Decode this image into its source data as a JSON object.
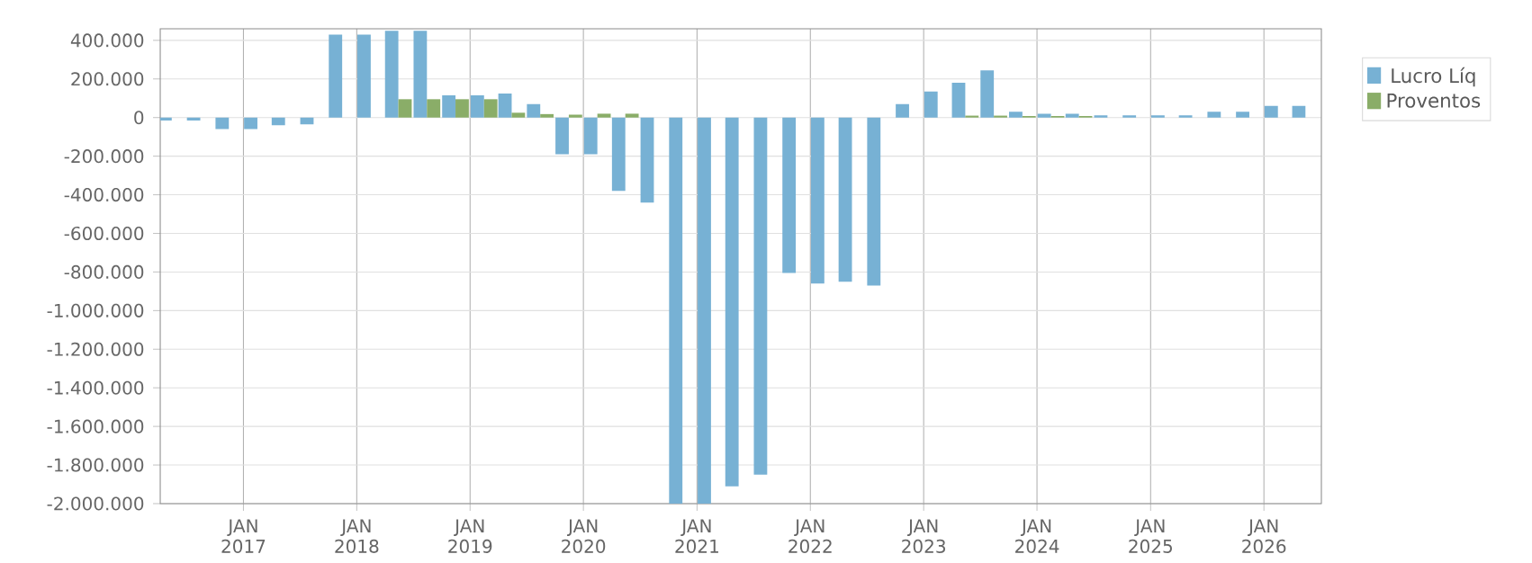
{
  "chart_data": {
    "type": "bar",
    "x": [
      "2016-05-15",
      "2016-08-15",
      "2016-11-15",
      "2017-02-15",
      "2017-05-15",
      "2017-08-15",
      "2017-11-15",
      "2018-02-15",
      "2018-05-15",
      "2018-08-15",
      "2018-11-15",
      "2019-02-15",
      "2019-05-15",
      "2019-08-15",
      "2019-11-15",
      "2020-02-15",
      "2020-05-15",
      "2020-08-15",
      "2020-11-15",
      "2021-02-15",
      "2021-05-15",
      "2021-08-15",
      "2021-11-15",
      "2022-02-15",
      "2022-05-15",
      "2022-08-15",
      "2022-11-15",
      "2023-02-15",
      "2023-05-15",
      "2023-08-15",
      "2023-11-15",
      "2024-02-15",
      "2024-05-15",
      "2024-08-15",
      "2024-11-15",
      "2025-02-15",
      "2025-05-15",
      "2025-08-15",
      "2025-11-15",
      "2026-02-15",
      "2026-05-15"
    ],
    "series": [
      {
        "name": "Lucro Líq",
        "color": "#77b1d4",
        "values": [
          -15000,
          -15000,
          -60000,
          -60000,
          -40000,
          -35000,
          430000,
          430000,
          450000,
          450000,
          115000,
          115000,
          125000,
          70000,
          -190000,
          -190000,
          -380000,
          -440000,
          -2000000,
          -2000000,
          -1910000,
          -1850000,
          -805000,
          -860000,
          -850000,
          -870000,
          70000,
          135000,
          180000,
          245000,
          30000,
          20000,
          20000,
          12000,
          12000,
          12000,
          12000,
          30000,
          30000,
          60000,
          60000
        ]
      },
      {
        "name": "Proventos",
        "color": "#8aad68",
        "values": [
          0,
          0,
          0,
          0,
          0,
          0,
          0,
          0,
          95000,
          95000,
          95000,
          95000,
          25000,
          18000,
          15000,
          20000,
          20000,
          0,
          0,
          0,
          0,
          0,
          0,
          0,
          0,
          0,
          0,
          0,
          10000,
          10000,
          8000,
          8000,
          8000,
          0,
          0,
          0,
          0,
          0,
          0,
          0,
          0
        ]
      }
    ],
    "xlim": [
      "2016-04-08",
      "2026-07-05"
    ],
    "xticks": [
      {
        "value": "2017-01-01",
        "label": "JAN 2017"
      },
      {
        "value": "2018-01-01",
        "label": "JAN 2018"
      },
      {
        "value": "2019-01-01",
        "label": "JAN 2019"
      },
      {
        "value": "2020-01-01",
        "label": "JAN 2020"
      },
      {
        "value": "2021-01-01",
        "label": "JAN 2021"
      },
      {
        "value": "2022-01-01",
        "label": "JAN 2022"
      },
      {
        "value": "2023-01-01",
        "label": "JAN 2023"
      },
      {
        "value": "2024-01-01",
        "label": "JAN 2024"
      },
      {
        "value": "2025-01-01",
        "label": "JAN 2025"
      },
      {
        "value": "2026-01-01",
        "label": "JAN 2026"
      }
    ],
    "ylim": [
      -2000000,
      460000
    ],
    "yticks": [
      {
        "value": -2000000,
        "label": "-2.000.000"
      },
      {
        "value": -1800000,
        "label": "-1.800.000"
      },
      {
        "value": -1600000,
        "label": "-1.600.000"
      },
      {
        "value": -1400000,
        "label": "-1.400.000"
      },
      {
        "value": -1200000,
        "label": "-1.200.000"
      },
      {
        "value": -1000000,
        "label": "-1.000.000"
      },
      {
        "value": -800000,
        "label": "-800.000"
      },
      {
        "value": -600000,
        "label": "-600.000"
      },
      {
        "value": -400000,
        "label": "-400.000"
      },
      {
        "value": -200000,
        "label": "-200.000"
      },
      {
        "value": 0,
        "label": "0"
      },
      {
        "value": 200000,
        "label": "200.000"
      },
      {
        "value": 400000,
        "label": "400.000"
      }
    ],
    "grid": true,
    "legend": "top right"
  }
}
